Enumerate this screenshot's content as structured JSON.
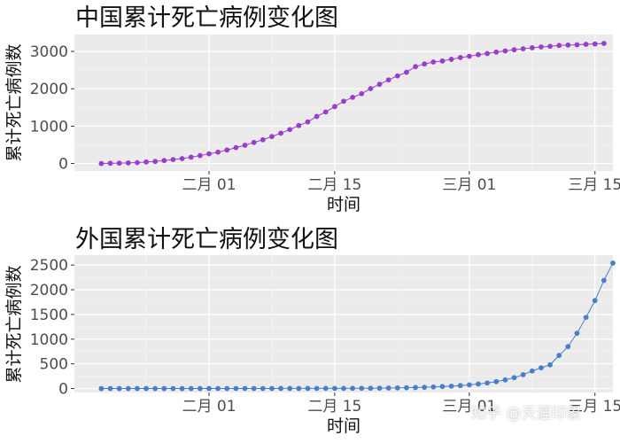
{
  "chart_data": [
    {
      "type": "line",
      "title": "中国累计死亡病例变化图",
      "xlabel": "时间",
      "ylabel": "累计死亡病例数",
      "x_start": "2020-01-20",
      "xlim": [
        "2020-01-17",
        "2020-03-17"
      ],
      "ylim": [
        -200,
        3450
      ],
      "x_ticks": [
        {
          "date": "2020-02-01",
          "label": "二月 01"
        },
        {
          "date": "2020-02-15",
          "label": "二月 15"
        },
        {
          "date": "2020-03-01",
          "label": "三月 01"
        },
        {
          "date": "2020-03-15",
          "label": "三月 15"
        }
      ],
      "y_ticks": [
        0,
        1000,
        2000,
        3000
      ],
      "y_tick_labels": [
        "0",
        "1000",
        "2000",
        "3000"
      ],
      "color": "#9b3dcc",
      "grid": true,
      "panel_background": "#ebebeb",
      "series": [
        {
          "values": [
            0,
            6,
            9,
            17,
            25,
            41,
            56,
            80,
            106,
            132,
            170,
            213,
            259,
            304,
            361,
            425,
            490,
            563,
            636,
            722,
            811,
            908,
            1016,
            1113,
            1259,
            1380,
            1523,
            1665,
            1770,
            1868,
            2004,
            2118,
            2236,
            2345,
            2442,
            2592,
            2663,
            2715,
            2744,
            2788,
            2835,
            2870,
            2912,
            2943,
            2981,
            3012,
            3042,
            3070,
            3097,
            3119,
            3136,
            3158,
            3169,
            3176,
            3189,
            3199,
            3213
          ]
        }
      ]
    },
    {
      "type": "line",
      "title": "外国累计死亡病例变化图",
      "xlabel": "时间",
      "ylabel": "累计死亡病例数",
      "x_start": "2020-01-20",
      "xlim": [
        "2020-01-17",
        "2020-03-17"
      ],
      "ylim": [
        -80,
        2700
      ],
      "x_ticks": [
        {
          "date": "2020-02-01",
          "label": "二月 01"
        },
        {
          "date": "2020-02-15",
          "label": "二月 15"
        },
        {
          "date": "2020-03-01",
          "label": "三月 01"
        },
        {
          "date": "2020-03-15",
          "label": "三月 15"
        }
      ],
      "y_ticks": [
        0,
        500,
        1000,
        1500,
        2000,
        2500
      ],
      "y_tick_labels": [
        "0",
        "500",
        "1000",
        "1500",
        "2000",
        "2500"
      ],
      "color": "#4a7ecb",
      "grid": true,
      "panel_background": "#ebebeb",
      "series": [
        {
          "values": [
            0,
            0,
            0,
            0,
            0,
            0,
            0,
            0,
            0,
            0,
            0,
            0,
            0,
            1,
            1,
            1,
            1,
            1,
            1,
            1,
            2,
            2,
            2,
            2,
            3,
            3,
            3,
            3,
            4,
            5,
            6,
            8,
            10,
            13,
            16,
            20,
            25,
            32,
            40,
            48,
            60,
            75,
            92,
            113,
            140,
            175,
            220,
            280,
            355,
            420,
            480,
            670,
            850,
            1120,
            1440,
            1780,
            2190,
            2540
          ]
        }
      ]
    }
  ],
  "watermark": "知乎 @天涯印象"
}
